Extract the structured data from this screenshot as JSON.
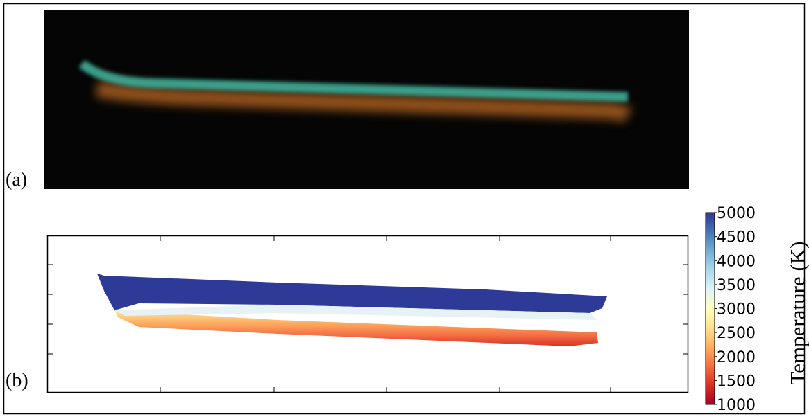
{
  "figure": {
    "panel_a": {
      "label": "(a)"
    },
    "panel_b": {
      "label": "(b)"
    },
    "colorbar": {
      "label": "Temperature (K)",
      "lim": [
        1000,
        5000
      ],
      "ticks": [
        1000,
        1500,
        2000,
        2500,
        3000,
        3500,
        4000,
        4500,
        5000
      ]
    }
  }
}
